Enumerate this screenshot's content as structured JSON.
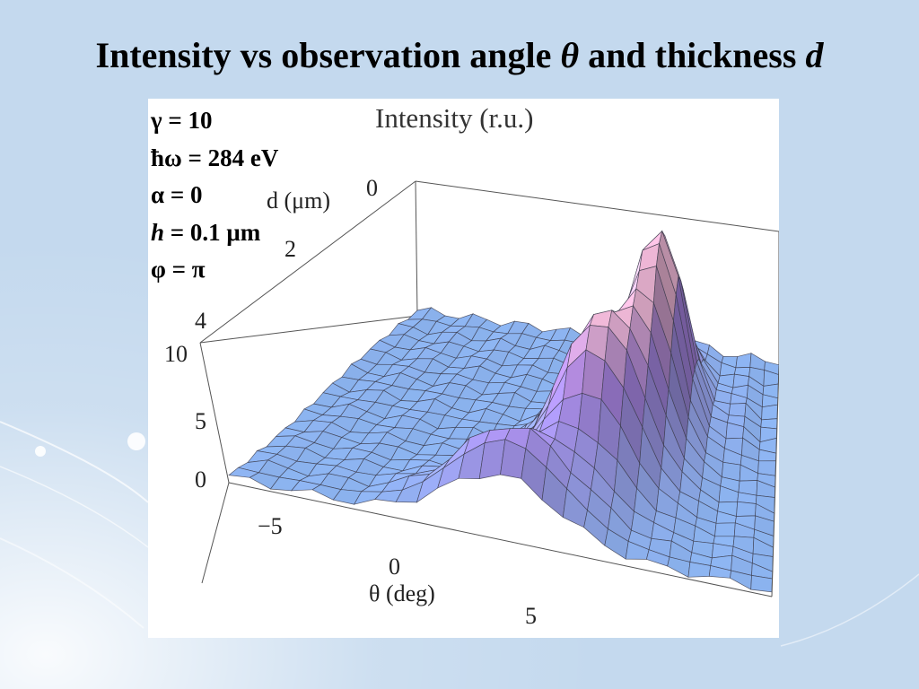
{
  "slide": {
    "title_main": "Intensity vs observation angle ",
    "title_theta": "θ",
    "title_mid": " and thickness ",
    "title_d": "d"
  },
  "figure": {
    "plot_title": "Intensity (r.u.)",
    "params": [
      {
        "label": "γ = 10"
      },
      {
        "label": "ħω = 284 eV"
      },
      {
        "label": "α = 0"
      },
      {
        "sym": "h",
        "label": " = 0.1 μm"
      },
      {
        "label": "φ = π"
      }
    ]
  },
  "chart_data": {
    "type": "surface3d",
    "title": "Intensity (r.u.)",
    "xlabel": "θ (deg)",
    "ylabel": "d (μm)",
    "zlabel": "",
    "x_ticks": [
      "−5",
      "0",
      "5"
    ],
    "y_ticks": [
      "0",
      "2",
      "4"
    ],
    "z_ticks": [
      "0",
      "5",
      "10"
    ],
    "xlim": [
      -8,
      8
    ],
    "ylim": [
      0,
      5
    ],
    "zlim": [
      0,
      12
    ],
    "description_peaks": [
      {
        "theta": 0,
        "d": 0.4,
        "intensity": 5.0
      },
      {
        "theta": 2.0,
        "d": 1.8,
        "intensity": 8.5
      },
      {
        "theta": 3.5,
        "d": 3.2,
        "intensity": 11.0
      }
    ]
  },
  "colors": {
    "background": "#c4d9ee",
    "surface_low": "#8ab6f0",
    "surface_high": "#b38cf0",
    "surface_highlight": "#f0b8d8"
  }
}
